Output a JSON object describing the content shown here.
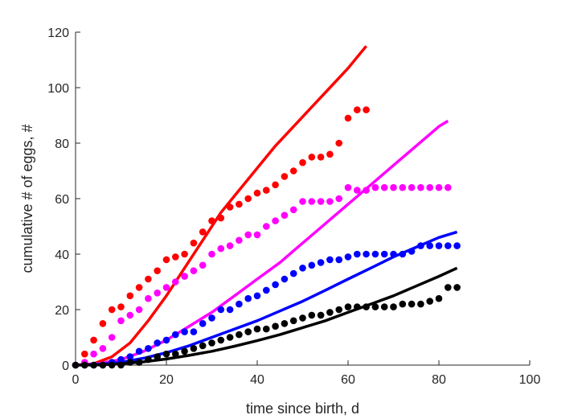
{
  "chart_data": {
    "type": "scatter",
    "title": "",
    "xlabel": "time since birth, d",
    "ylabel": "cumulative # of eggs, #",
    "xlim": [
      0,
      100
    ],
    "ylim": [
      0,
      120
    ],
    "xticks": [
      0,
      20,
      40,
      60,
      80,
      100
    ],
    "yticks": [
      0,
      20,
      40,
      60,
      80,
      100,
      120
    ],
    "grid": false,
    "legend": "none",
    "series": [
      {
        "color": "#ff0000",
        "marker": "dot",
        "points": [
          [
            0,
            0
          ],
          [
            2,
            4
          ],
          [
            4,
            9
          ],
          [
            6,
            15
          ],
          [
            8,
            20
          ],
          [
            10,
            21
          ],
          [
            12,
            25
          ],
          [
            14,
            28
          ],
          [
            16,
            31
          ],
          [
            18,
            34
          ],
          [
            20,
            38
          ],
          [
            22,
            39
          ],
          [
            24,
            40
          ],
          [
            26,
            44
          ],
          [
            28,
            48
          ],
          [
            30,
            52
          ],
          [
            32,
            53
          ],
          [
            34,
            57
          ],
          [
            36,
            58
          ],
          [
            38,
            60
          ],
          [
            40,
            62
          ],
          [
            42,
            63
          ],
          [
            44,
            65
          ],
          [
            46,
            68
          ],
          [
            48,
            70
          ],
          [
            50,
            73
          ],
          [
            52,
            75
          ],
          [
            54,
            75
          ],
          [
            56,
            76
          ],
          [
            58,
            80
          ],
          [
            60,
            89
          ],
          [
            62,
            92
          ],
          [
            64,
            92
          ]
        ]
      },
      {
        "color": "#ff00ff",
        "marker": "dot",
        "points": [
          [
            0,
            0
          ],
          [
            2,
            1
          ],
          [
            4,
            4
          ],
          [
            6,
            6
          ],
          [
            8,
            10
          ],
          [
            10,
            16
          ],
          [
            12,
            18
          ],
          [
            14,
            20
          ],
          [
            16,
            24
          ],
          [
            18,
            26
          ],
          [
            20,
            28
          ],
          [
            22,
            30
          ],
          [
            24,
            32
          ],
          [
            26,
            34
          ],
          [
            28,
            36
          ],
          [
            30,
            40
          ],
          [
            32,
            42
          ],
          [
            34,
            43
          ],
          [
            36,
            45
          ],
          [
            38,
            47
          ],
          [
            40,
            47
          ],
          [
            42,
            50
          ],
          [
            44,
            52
          ],
          [
            46,
            54
          ],
          [
            48,
            56
          ],
          [
            50,
            59
          ],
          [
            52,
            59
          ],
          [
            54,
            59
          ],
          [
            56,
            59
          ],
          [
            58,
            60
          ],
          [
            60,
            64
          ],
          [
            62,
            63
          ],
          [
            64,
            63
          ],
          [
            66,
            64
          ],
          [
            68,
            64
          ],
          [
            70,
            64
          ],
          [
            72,
            64
          ],
          [
            74,
            64
          ],
          [
            76,
            64
          ],
          [
            78,
            64
          ],
          [
            80,
            64
          ],
          [
            82,
            64
          ]
        ]
      },
      {
        "color": "#0000ff",
        "marker": "dot",
        "points": [
          [
            0,
            0
          ],
          [
            2,
            0
          ],
          [
            4,
            0
          ],
          [
            6,
            0
          ],
          [
            8,
            1
          ],
          [
            10,
            2
          ],
          [
            12,
            3
          ],
          [
            14,
            5
          ],
          [
            16,
            6
          ],
          [
            18,
            8
          ],
          [
            20,
            9
          ],
          [
            22,
            11
          ],
          [
            24,
            12
          ],
          [
            26,
            12
          ],
          [
            28,
            15
          ],
          [
            30,
            17
          ],
          [
            32,
            20
          ],
          [
            34,
            20
          ],
          [
            36,
            22
          ],
          [
            38,
            24
          ],
          [
            40,
            25
          ],
          [
            42,
            27
          ],
          [
            44,
            29
          ],
          [
            46,
            31
          ],
          [
            48,
            33
          ],
          [
            50,
            35
          ],
          [
            52,
            36
          ],
          [
            54,
            37
          ],
          [
            56,
            38
          ],
          [
            58,
            38
          ],
          [
            60,
            39
          ],
          [
            62,
            40
          ],
          [
            64,
            40
          ],
          [
            66,
            40
          ],
          [
            68,
            40
          ],
          [
            70,
            40
          ],
          [
            72,
            40
          ],
          [
            74,
            41
          ],
          [
            76,
            43
          ],
          [
            78,
            43
          ],
          [
            80,
            43
          ],
          [
            82,
            43
          ],
          [
            84,
            43
          ]
        ]
      },
      {
        "color": "#000000",
        "marker": "dot",
        "points": [
          [
            0,
            0
          ],
          [
            2,
            0
          ],
          [
            4,
            0
          ],
          [
            6,
            0
          ],
          [
            8,
            0
          ],
          [
            10,
            0
          ],
          [
            12,
            1
          ],
          [
            14,
            1
          ],
          [
            16,
            2
          ],
          [
            18,
            3
          ],
          [
            20,
            4
          ],
          [
            22,
            4
          ],
          [
            24,
            5
          ],
          [
            26,
            6
          ],
          [
            28,
            7
          ],
          [
            30,
            8
          ],
          [
            32,
            9
          ],
          [
            34,
            10
          ],
          [
            36,
            11
          ],
          [
            38,
            12
          ],
          [
            40,
            13
          ],
          [
            42,
            13
          ],
          [
            44,
            14
          ],
          [
            46,
            15
          ],
          [
            48,
            16
          ],
          [
            50,
            17
          ],
          [
            52,
            18
          ],
          [
            54,
            18
          ],
          [
            56,
            19
          ],
          [
            58,
            20
          ],
          [
            60,
            21
          ],
          [
            62,
            21
          ],
          [
            64,
            21
          ],
          [
            66,
            21
          ],
          [
            68,
            21
          ],
          [
            70,
            21
          ],
          [
            72,
            22
          ],
          [
            74,
            22
          ],
          [
            76,
            22
          ],
          [
            78,
            23
          ],
          [
            80,
            24
          ],
          [
            82,
            28
          ],
          [
            84,
            28
          ]
        ]
      },
      {
        "color": "#ff0000",
        "marker": "line",
        "points": [
          [
            0,
            0
          ],
          [
            4,
            0.5
          ],
          [
            8,
            3
          ],
          [
            12,
            8
          ],
          [
            16,
            16
          ],
          [
            20,
            25
          ],
          [
            24,
            35
          ],
          [
            28,
            45
          ],
          [
            32,
            55
          ],
          [
            36,
            63
          ],
          [
            40,
            71
          ],
          [
            44,
            79
          ],
          [
            48,
            86
          ],
          [
            52,
            93
          ],
          [
            56,
            100
          ],
          [
            60,
            107
          ],
          [
            64,
            115
          ]
        ]
      },
      {
        "color": "#ff00ff",
        "marker": "line",
        "points": [
          [
            0,
            0
          ],
          [
            5,
            0.5
          ],
          [
            10,
            2
          ],
          [
            15,
            5
          ],
          [
            20,
            9
          ],
          [
            25,
            14
          ],
          [
            30,
            19
          ],
          [
            35,
            25
          ],
          [
            40,
            31
          ],
          [
            45,
            37
          ],
          [
            50,
            44
          ],
          [
            55,
            51
          ],
          [
            60,
            58
          ],
          [
            65,
            65
          ],
          [
            70,
            72
          ],
          [
            75,
            79
          ],
          [
            80,
            86
          ],
          [
            82,
            88
          ]
        ]
      },
      {
        "color": "#0000ff",
        "marker": "line",
        "points": [
          [
            0,
            0
          ],
          [
            5,
            0.3
          ],
          [
            10,
            1
          ],
          [
            15,
            2.5
          ],
          [
            20,
            4.5
          ],
          [
            25,
            7
          ],
          [
            30,
            10
          ],
          [
            35,
            13
          ],
          [
            40,
            16
          ],
          [
            45,
            19.5
          ],
          [
            50,
            23
          ],
          [
            55,
            27
          ],
          [
            60,
            31
          ],
          [
            65,
            35
          ],
          [
            70,
            39
          ],
          [
            75,
            42.5
          ],
          [
            80,
            46
          ],
          [
            84,
            48
          ]
        ]
      },
      {
        "color": "#000000",
        "marker": "line",
        "points": [
          [
            0,
            0
          ],
          [
            5,
            0.1
          ],
          [
            10,
            0.5
          ],
          [
            15,
            1.2
          ],
          [
            20,
            2.2
          ],
          [
            25,
            3.5
          ],
          [
            30,
            5
          ],
          [
            35,
            6.8
          ],
          [
            40,
            8.8
          ],
          [
            45,
            11
          ],
          [
            50,
            13.5
          ],
          [
            55,
            16
          ],
          [
            60,
            19
          ],
          [
            65,
            22
          ],
          [
            70,
            25
          ],
          [
            75,
            28.5
          ],
          [
            80,
            32
          ],
          [
            84,
            35
          ]
        ]
      }
    ]
  }
}
